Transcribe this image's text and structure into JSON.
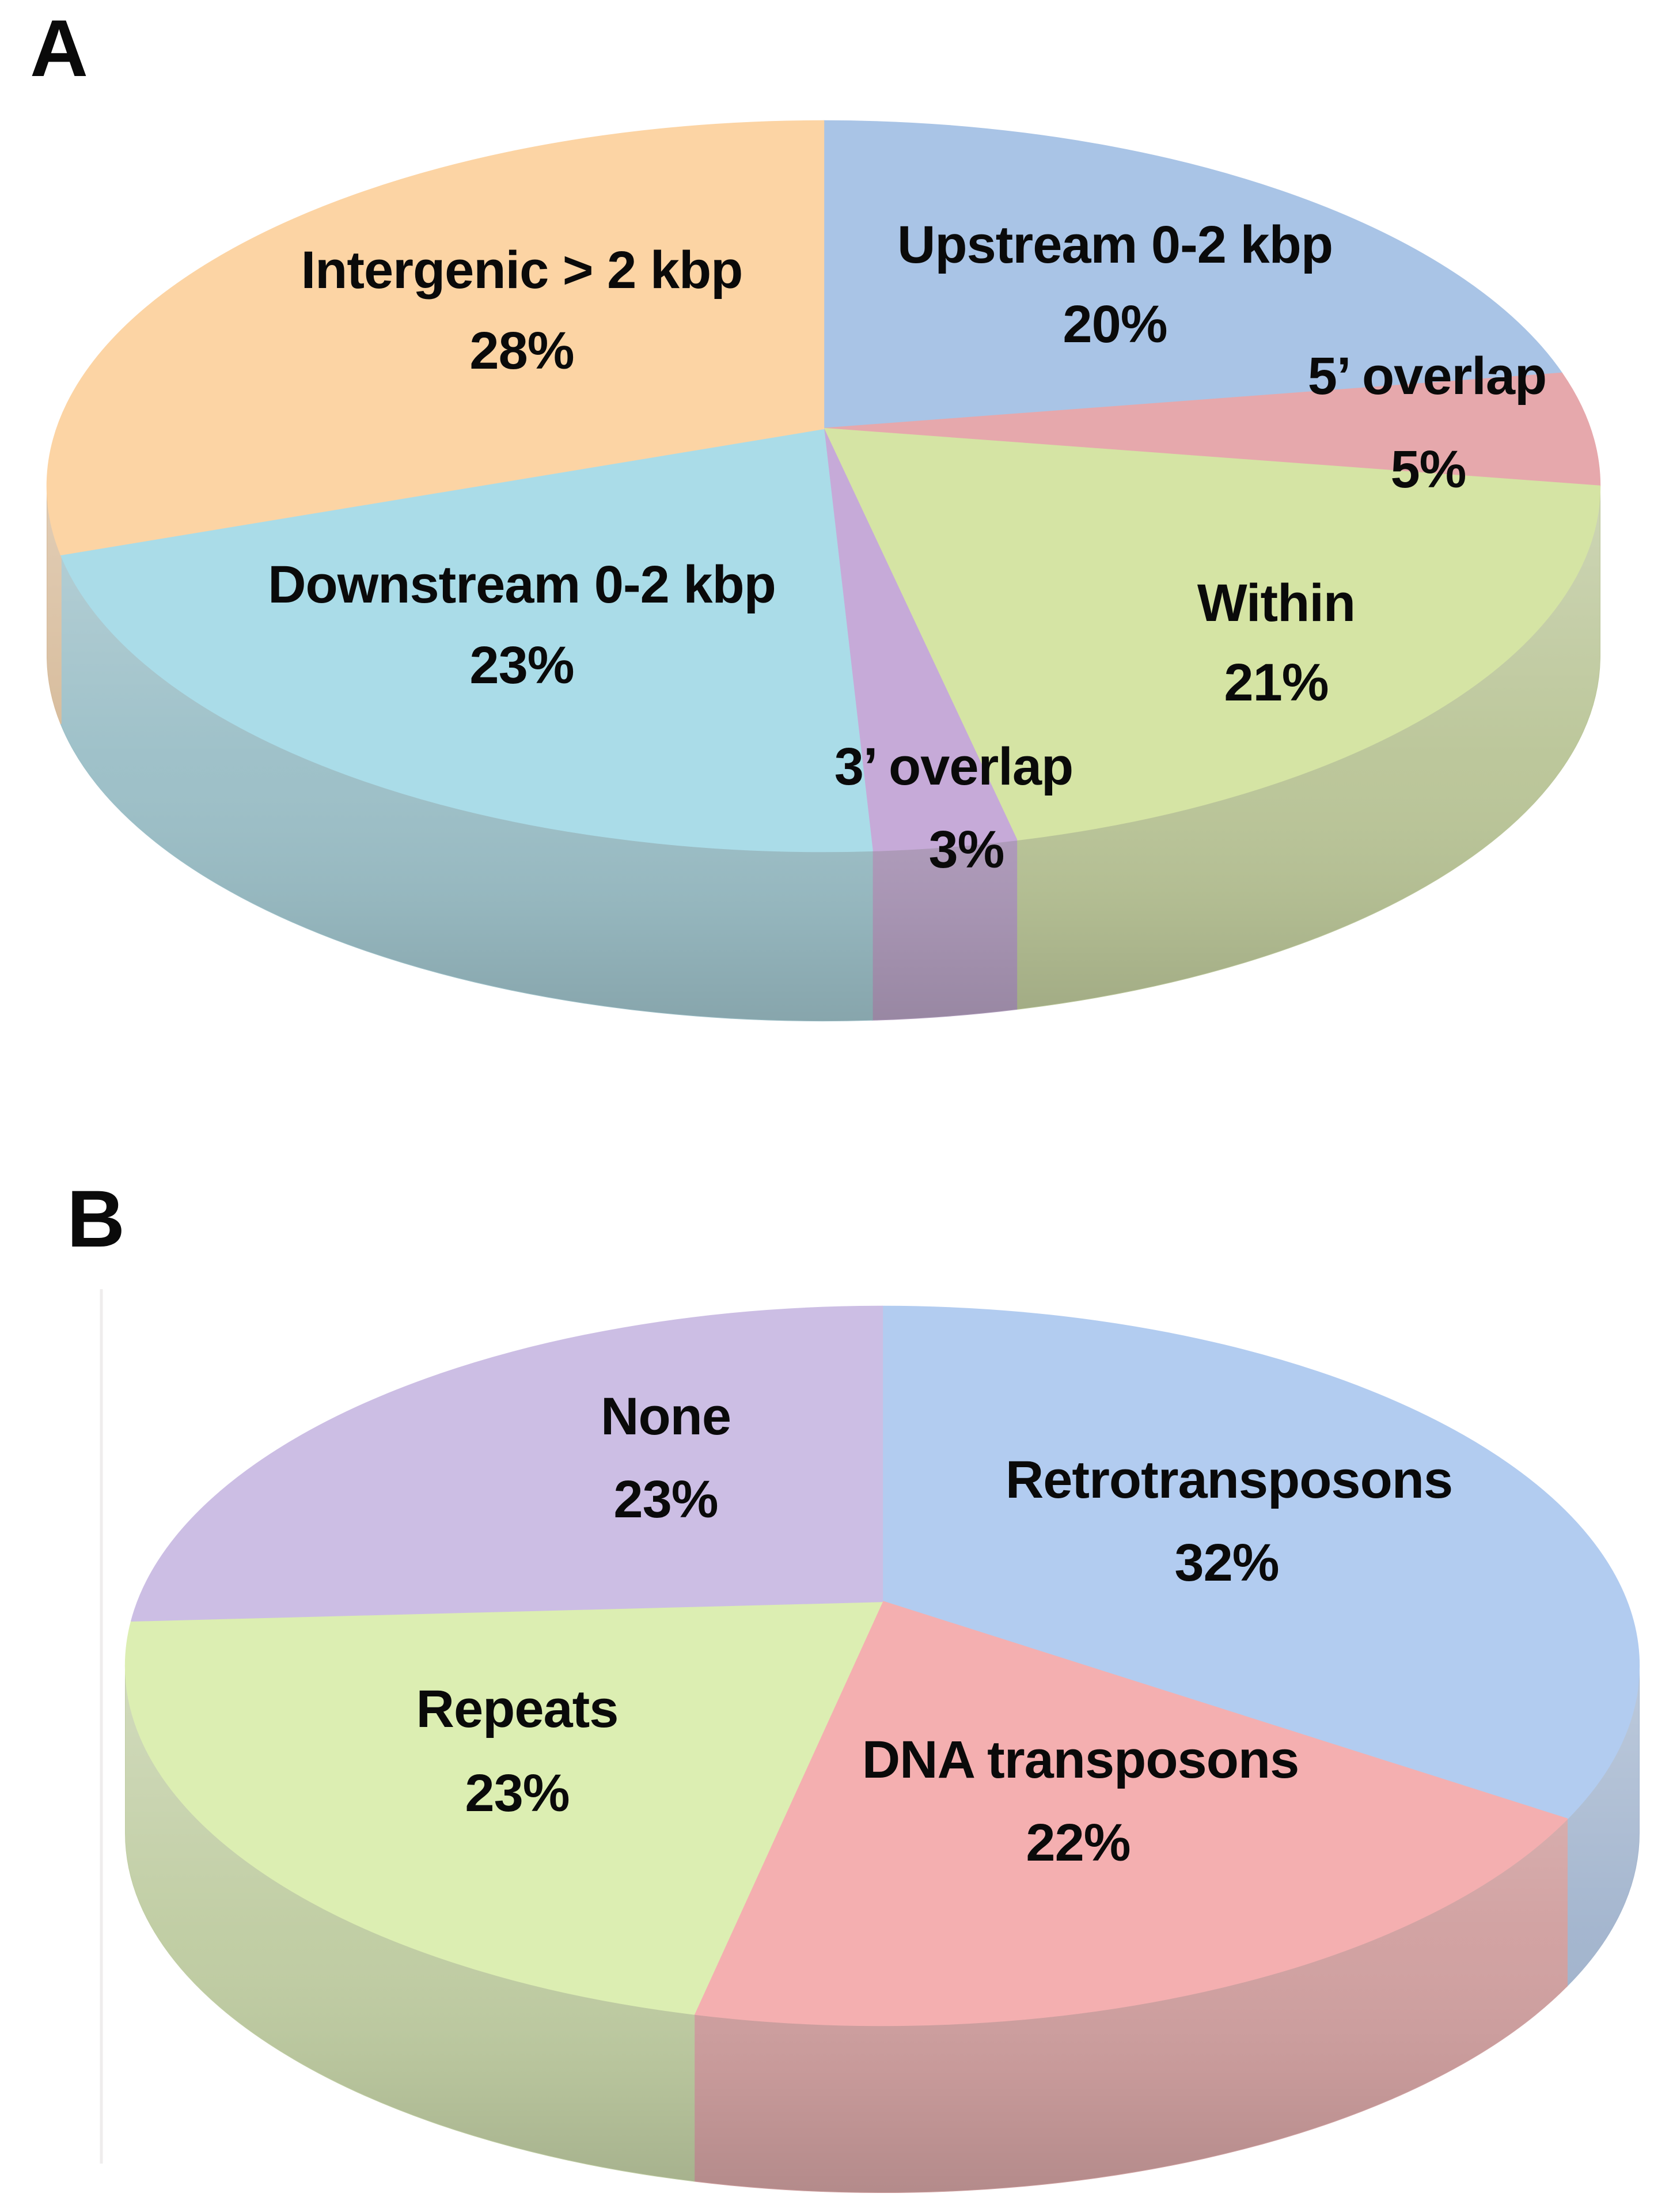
{
  "figure": {
    "background_color": "#ffffff",
    "text_color": "#0a0a0a"
  },
  "chart_data": [
    {
      "type": "pie",
      "panel_letter": "A",
      "title": "",
      "effect": "3d",
      "direction": "clockwise",
      "start_angle_deg": 0,
      "legend": "none",
      "slices": [
        {
          "label": "Upstream 0-2 kbp",
          "value_pct": 20,
          "pct_label": "20%",
          "color": "#a9c4e6",
          "label_pos": [
            968,
            228
          ],
          "pct_pos": [
            968,
            297
          ]
        },
        {
          "label": "5’ overlap",
          "value_pct": 5,
          "pct_label": "5%",
          "color": "#e6a8ac",
          "label_pos": [
            1239,
            342
          ],
          "pct_pos": [
            1240,
            423
          ]
        },
        {
          "label": "Within",
          "value_pct": 21,
          "pct_label": "21%",
          "color": "#d5e4a4",
          "label_pos": [
            1108,
            539
          ],
          "pct_pos": [
            1108,
            608
          ]
        },
        {
          "label": "3’ overlap",
          "value_pct": 3,
          "pct_label": "3%",
          "color": "#c6aad8",
          "label_pos": [
            828,
            681
          ],
          "pct_pos": [
            839,
            753
          ]
        },
        {
          "label": "Downstream 0-2 kbp",
          "value_pct": 23,
          "pct_label": "23%",
          "color": "#aadce8",
          "label_pos": [
            453,
            523
          ],
          "pct_pos": [
            453,
            593
          ]
        },
        {
          "label": "Intergenic > 2 kbp",
          "value_pct": 28,
          "pct_label": "28%",
          "color": "#fcd4a4",
          "label_pos": [
            453,
            250
          ],
          "pct_pos": [
            453,
            320
          ]
        }
      ]
    },
    {
      "type": "pie",
      "panel_letter": "B",
      "title": "",
      "effect": "3d",
      "direction": "clockwise",
      "start_angle_deg": 0,
      "legend": "none",
      "slices": [
        {
          "label": "Retrotransposons",
          "value_pct": 32,
          "pct_label": "32%",
          "color": "#b2ccf0",
          "label_pos": [
            1067,
            1300
          ],
          "pct_pos": [
            1065,
            1372
          ]
        },
        {
          "label": "DNA transposons",
          "value_pct": 22,
          "pct_label": "22%",
          "color": "#f4afb0",
          "label_pos": [
            938,
            1543
          ],
          "pct_pos": [
            936,
            1615
          ]
        },
        {
          "label": "Repeats",
          "value_pct": 23,
          "pct_label": "23%",
          "color": "#dceeb2",
          "label_pos": [
            449,
            1499
          ],
          "pct_pos": [
            449,
            1572
          ]
        },
        {
          "label": "None",
          "value_pct": 23,
          "pct_label": "23%",
          "color": "#ccbee4",
          "label_pos": [
            578,
            1245
          ],
          "pct_pos": [
            578,
            1317
          ]
        }
      ]
    }
  ]
}
